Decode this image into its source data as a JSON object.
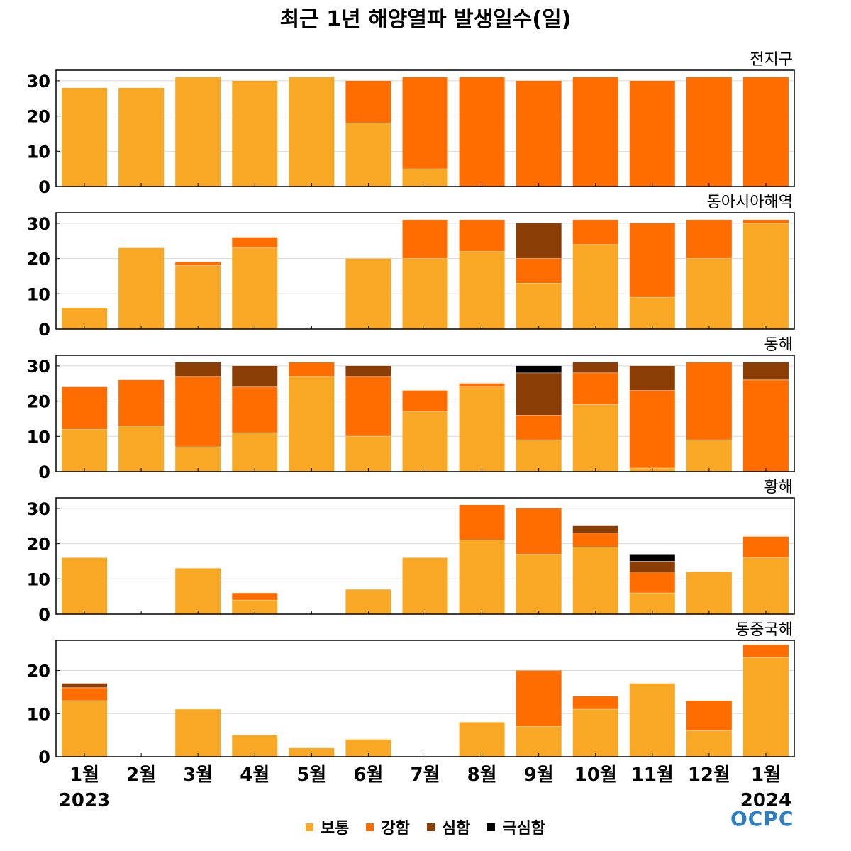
{
  "title": "최근 1년 해양열파 발생일수(일)",
  "colors": {
    "보통": "#f9a825",
    "강함": "#ff6d00",
    "심함": "#8b3d06",
    "극심함": "#000000"
  },
  "legend": [
    {
      "name": "보통",
      "color_key": "보통"
    },
    {
      "name": "강함",
      "color_key": "강함"
    },
    {
      "name": "심함",
      "color_key": "심함"
    },
    {
      "name": "극심함",
      "color_key": "극심함"
    }
  ],
  "logo_text": "OCPC",
  "chart_data": [
    {
      "type": "bar",
      "stacked": true,
      "title": "전지구",
      "categories": [
        "1월",
        "2월",
        "3월",
        "4월",
        "5월",
        "6월",
        "7월",
        "8월",
        "9월",
        "10월",
        "11월",
        "12월",
        "1월"
      ],
      "ylim": [
        0,
        33
      ],
      "yticks": [
        0,
        10,
        20,
        30
      ],
      "series": [
        {
          "name": "보통",
          "values": [
            28,
            28,
            31,
            30,
            31,
            18,
            5,
            0,
            0,
            0,
            0,
            0,
            0
          ]
        },
        {
          "name": "강함",
          "values": [
            0,
            0,
            0,
            0,
            0,
            12,
            26,
            31,
            30,
            31,
            30,
            31,
            31
          ]
        },
        {
          "name": "심함",
          "values": [
            0,
            0,
            0,
            0,
            0,
            0,
            0,
            0,
            0,
            0,
            0,
            0,
            0
          ]
        },
        {
          "name": "극심함",
          "values": [
            0,
            0,
            0,
            0,
            0,
            0,
            0,
            0,
            0,
            0,
            0,
            0,
            0
          ]
        }
      ]
    },
    {
      "type": "bar",
      "stacked": true,
      "title": "동아시아해역",
      "categories": [
        "1월",
        "2월",
        "3월",
        "4월",
        "5월",
        "6월",
        "7월",
        "8월",
        "9월",
        "10월",
        "11월",
        "12월",
        "1월"
      ],
      "ylim": [
        0,
        33
      ],
      "yticks": [
        0,
        10,
        20,
        30
      ],
      "series": [
        {
          "name": "보통",
          "values": [
            6,
            23,
            18,
            23,
            0,
            20,
            20,
            22,
            13,
            24,
            9,
            20,
            30
          ]
        },
        {
          "name": "강함",
          "values": [
            0,
            0,
            1,
            3,
            0,
            0,
            11,
            9,
            7,
            7,
            21,
            11,
            1
          ]
        },
        {
          "name": "심함",
          "values": [
            0,
            0,
            0,
            0,
            0,
            0,
            0,
            0,
            10,
            0,
            0,
            0,
            0
          ]
        },
        {
          "name": "극심함",
          "values": [
            0,
            0,
            0,
            0,
            0,
            0,
            0,
            0,
            0,
            0,
            0,
            0,
            0
          ]
        }
      ]
    },
    {
      "type": "bar",
      "stacked": true,
      "title": "동해",
      "categories": [
        "1월",
        "2월",
        "3월",
        "4월",
        "5월",
        "6월",
        "7월",
        "8월",
        "9월",
        "10월",
        "11월",
        "12월",
        "1월"
      ],
      "ylim": [
        0,
        33
      ],
      "yticks": [
        0,
        10,
        20,
        30
      ],
      "series": [
        {
          "name": "보통",
          "values": [
            12,
            13,
            7,
            11,
            27,
            10,
            17,
            24,
            9,
            19,
            1,
            9,
            0
          ]
        },
        {
          "name": "강함",
          "values": [
            12,
            13,
            20,
            13,
            4,
            17,
            6,
            1,
            7,
            9,
            22,
            22,
            26
          ]
        },
        {
          "name": "심함",
          "values": [
            0,
            0,
            4,
            6,
            0,
            3,
            0,
            0,
            12,
            3,
            7,
            0,
            5
          ]
        },
        {
          "name": "극심함",
          "values": [
            0,
            0,
            0,
            0,
            0,
            0,
            0,
            0,
            2,
            0,
            0,
            0,
            0
          ]
        }
      ]
    },
    {
      "type": "bar",
      "stacked": true,
      "title": "황해",
      "categories": [
        "1월",
        "2월",
        "3월",
        "4월",
        "5월",
        "6월",
        "7월",
        "8월",
        "9월",
        "10월",
        "11월",
        "12월",
        "1월"
      ],
      "ylim": [
        0,
        33
      ],
      "yticks": [
        0,
        10,
        20,
        30
      ],
      "series": [
        {
          "name": "보통",
          "values": [
            16,
            0,
            13,
            4,
            0,
            7,
            16,
            21,
            17,
            19,
            6,
            12,
            16
          ]
        },
        {
          "name": "강함",
          "values": [
            0,
            0,
            0,
            2,
            0,
            0,
            0,
            10,
            13,
            4,
            6,
            0,
            6
          ]
        },
        {
          "name": "심함",
          "values": [
            0,
            0,
            0,
            0,
            0,
            0,
            0,
            0,
            0,
            2,
            3,
            0,
            0
          ]
        },
        {
          "name": "극심함",
          "values": [
            0,
            0,
            0,
            0,
            0,
            0,
            0,
            0,
            0,
            0,
            2,
            0,
            0
          ]
        }
      ]
    },
    {
      "type": "bar",
      "stacked": true,
      "title": "동중국해",
      "categories": [
        "1월",
        "2월",
        "3월",
        "4월",
        "5월",
        "6월",
        "7월",
        "8월",
        "9월",
        "10월",
        "11월",
        "12월",
        "1월"
      ],
      "ylim": [
        0,
        27
      ],
      "yticks": [
        0,
        10,
        20
      ],
      "series": [
        {
          "name": "보통",
          "values": [
            13,
            0,
            11,
            5,
            2,
            4,
            0,
            8,
            7,
            11,
            17,
            6,
            23
          ]
        },
        {
          "name": "강함",
          "values": [
            3,
            0,
            0,
            0,
            0,
            0,
            0,
            0,
            13,
            3,
            0,
            7,
            3
          ]
        },
        {
          "name": "심함",
          "values": [
            1,
            0,
            0,
            0,
            0,
            0,
            0,
            0,
            0,
            0,
            0,
            0,
            0
          ]
        },
        {
          "name": "극심함",
          "values": [
            0,
            0,
            0,
            0,
            0,
            0,
            0,
            0,
            0,
            0,
            0,
            0,
            0
          ]
        }
      ]
    }
  ],
  "x_axis": {
    "month_labels": [
      "1월",
      "2월",
      "3월",
      "4월",
      "5월",
      "6월",
      "7월",
      "8월",
      "9월",
      "10월",
      "11월",
      "12월",
      "1월"
    ],
    "year_start": "2023",
    "year_end": "2024"
  }
}
